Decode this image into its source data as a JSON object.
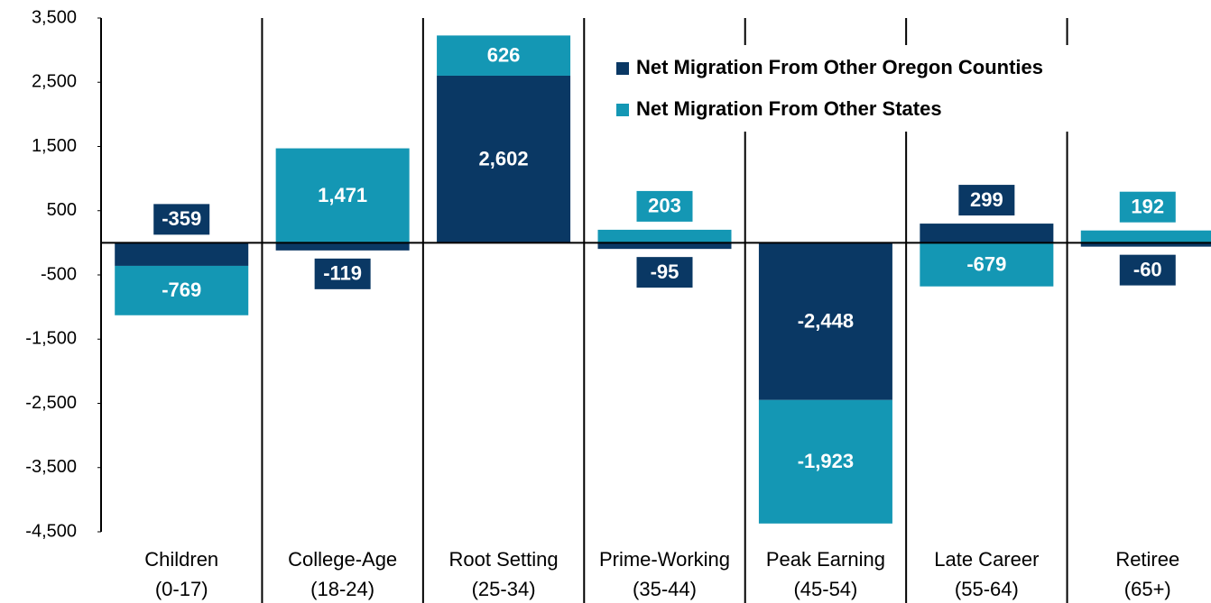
{
  "chart_data": {
    "type": "bar",
    "stacked": true,
    "categories": [
      [
        "Children",
        "(0-17)"
      ],
      [
        "College-Age",
        "(18-24)"
      ],
      [
        "Root Setting",
        "(25-34)"
      ],
      [
        "Prime-Working",
        "(35-44)"
      ],
      [
        "Peak Earning",
        "(45-54)"
      ],
      [
        "Late Career",
        "(55-64)"
      ],
      [
        "Retiree",
        "(65+)"
      ]
    ],
    "series": [
      {
        "name": "Net Migration From Other Oregon Counties",
        "color": "#0a3864",
        "values": [
          -359,
          -119,
          2602,
          -95,
          -2448,
          299,
          -60
        ],
        "value_labels": [
          "-359",
          "-119",
          "2,602",
          "-95",
          "-2,448",
          "299",
          "-60"
        ]
      },
      {
        "name": "Net Migration From Other States",
        "color": "#1497b4",
        "values": [
          -769,
          1471,
          626,
          203,
          -1923,
          -679,
          192
        ],
        "value_labels": [
          "-769",
          "1,471",
          "626",
          "203",
          "-1,923",
          "-679",
          "192"
        ]
      }
    ],
    "ylim": [
      -4500,
      3500
    ],
    "yticks": [
      {
        "value": 3500,
        "label": "3,500"
      },
      {
        "value": 2500,
        "label": "2,500"
      },
      {
        "value": 1500,
        "label": "1,500"
      },
      500,
      -500,
      {
        "value": -1500,
        "label": "-1,500"
      },
      {
        "value": -2500,
        "label": "-2,500"
      },
      {
        "value": -3500,
        "label": "-3,500"
      },
      {
        "value": -4500,
        "label": "-4,500"
      }
    ]
  }
}
